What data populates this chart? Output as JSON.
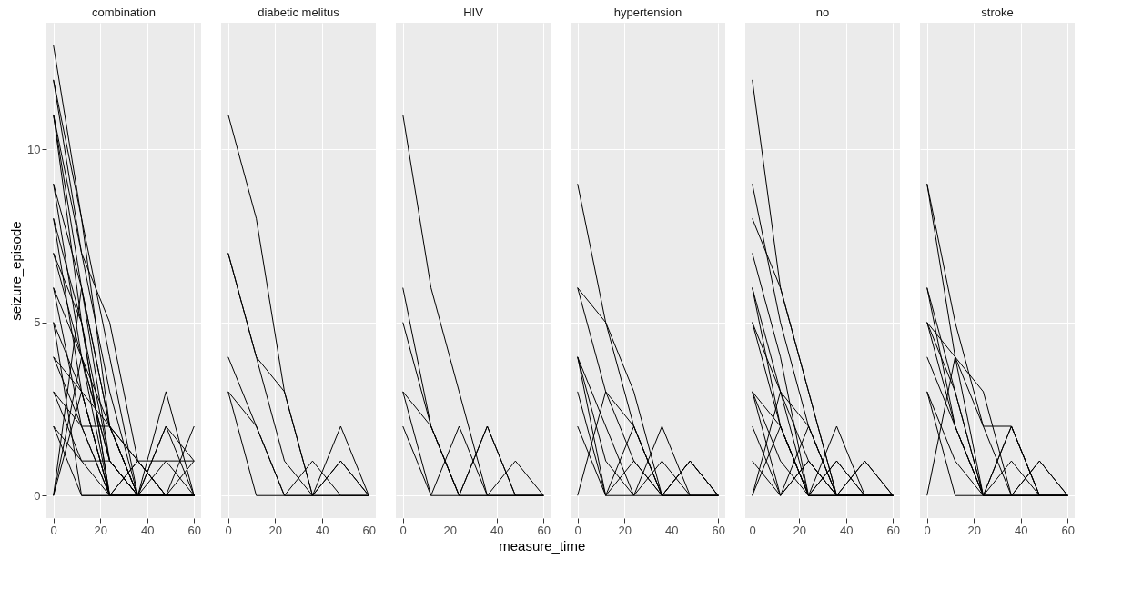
{
  "chart_data": [
    {
      "type": "line",
      "title": "combination",
      "ylabel": "seizure_episode",
      "x": [
        0,
        12,
        24,
        36,
        48,
        60
      ],
      "xlim": [
        -3,
        63
      ],
      "xticks": [
        0,
        20,
        40,
        60
      ],
      "ylim": [
        -0.65,
        13.65
      ],
      "yticks": [
        0,
        5,
        10
      ],
      "grid": true,
      "line_style": "solid",
      "series": [
        {
          "color": "#000000",
          "values": [
            13,
            8,
            4,
            0,
            0,
            0
          ]
        },
        {
          "color": "#000000",
          "values": [
            12,
            7,
            3,
            0,
            3,
            0
          ]
        },
        {
          "color": "#000000",
          "values": [
            12,
            8,
            2,
            0,
            0,
            0
          ]
        },
        {
          "color": "#000000",
          "values": [
            11,
            6,
            2,
            0,
            0,
            0
          ]
        },
        {
          "color": "#000000",
          "values": [
            11,
            7,
            5,
            1,
            0,
            0
          ]
        },
        {
          "color": "#000000",
          "values": [
            11,
            5,
            0,
            0,
            2,
            0
          ]
        },
        {
          "color": "#000000",
          "values": [
            9,
            6,
            2,
            1,
            0,
            0
          ]
        },
        {
          "color": "#000000",
          "values": [
            9,
            4,
            0,
            0,
            0,
            0
          ]
        },
        {
          "color": "#000000",
          "values": [
            8,
            5,
            1,
            0,
            0,
            1
          ]
        },
        {
          "color": "#000000",
          "values": [
            8,
            3,
            0,
            0,
            0,
            0
          ]
        },
        {
          "color": "#000000",
          "values": [
            7,
            4,
            2,
            0,
            0,
            2
          ]
        },
        {
          "color": "#000000",
          "values": [
            7,
            5,
            0,
            0,
            0,
            0
          ]
        },
        {
          "color": "#000000",
          "values": [
            6,
            4,
            1,
            0,
            2,
            1
          ]
        },
        {
          "color": "#000000",
          "values": [
            6,
            2,
            0,
            0,
            0,
            0
          ]
        },
        {
          "color": "#000000",
          "values": [
            5,
            3,
            2,
            1,
            1,
            1
          ]
        },
        {
          "color": "#000000",
          "values": [
            5,
            0,
            0,
            0,
            0,
            0
          ]
        },
        {
          "color": "#000000",
          "values": [
            4,
            2,
            2,
            0,
            0,
            0
          ]
        },
        {
          "color": "#000000",
          "values": [
            4,
            3,
            0,
            1,
            0,
            0
          ]
        },
        {
          "color": "#000000",
          "values": [
            3,
            1,
            1,
            0,
            0,
            0
          ]
        },
        {
          "color": "#000000",
          "values": [
            3,
            2,
            0,
            0,
            0,
            0
          ]
        },
        {
          "color": "#000000",
          "values": [
            2,
            0,
            0,
            1,
            0,
            0
          ]
        },
        {
          "color": "#000000",
          "values": [
            0,
            6,
            1,
            0,
            0,
            0
          ]
        },
        {
          "color": "#000000",
          "values": [
            0,
            4,
            1,
            0,
            0,
            0
          ]
        },
        {
          "color": "#000000",
          "values": [
            0,
            3,
            0,
            0,
            0,
            0
          ]
        },
        {
          "color": "#000000",
          "values": [
            2,
            1,
            0,
            0,
            1,
            0
          ]
        }
      ]
    },
    {
      "type": "line",
      "title": "diabetic melitus",
      "x": [
        0,
        12,
        24,
        36,
        48,
        60
      ],
      "xlim": [
        -3,
        63
      ],
      "xticks": [
        0,
        20,
        40,
        60
      ],
      "ylim": [
        -0.65,
        13.65
      ],
      "yticks": [
        0,
        5,
        10
      ],
      "grid": true,
      "line_style": "solid",
      "tick_labels": "x",
      "series": [
        {
          "color": "#000000",
          "values": [
            11,
            8,
            3,
            0,
            2,
            0
          ]
        },
        {
          "color": "#000000",
          "values": [
            7,
            4,
            3,
            0,
            1,
            0
          ]
        },
        {
          "color": "#000000",
          "values": [
            7,
            4,
            1,
            0,
            0,
            0
          ]
        },
        {
          "color": "#000000",
          "values": [
            4,
            2,
            0,
            1,
            0,
            0
          ]
        },
        {
          "color": "#000000",
          "values": [
            3,
            0,
            0,
            0,
            0,
            0
          ]
        },
        {
          "color": "#000000",
          "values": [
            3,
            2,
            0,
            0,
            1,
            0
          ]
        }
      ]
    },
    {
      "type": "line",
      "title": "HIV",
      "xlabel": "measure_time",
      "x": [
        0,
        12,
        24,
        36,
        48,
        60
      ],
      "xlim": [
        -3,
        63
      ],
      "xticks": [
        0,
        20,
        40,
        60
      ],
      "ylim": [
        -0.65,
        13.65
      ],
      "yticks": [
        0,
        5,
        10
      ],
      "grid": true,
      "line_style": "solid",
      "tick_labels": "x",
      "series": [
        {
          "color": "#000000",
          "values": [
            11,
            6,
            3,
            0,
            0,
            0
          ]
        },
        {
          "color": "#000000",
          "values": [
            6,
            2,
            0,
            2,
            0,
            0
          ]
        },
        {
          "color": "#000000",
          "values": [
            5,
            2,
            0,
            0,
            0,
            0
          ]
        },
        {
          "color": "#000000",
          "values": [
            3,
            2,
            0,
            0,
            1,
            0
          ]
        },
        {
          "color": "#000000",
          "values": [
            3,
            0,
            2,
            0,
            0,
            0
          ]
        },
        {
          "color": "#000000",
          "values": [
            2,
            0,
            0,
            2,
            0,
            0
          ]
        }
      ]
    },
    {
      "type": "line",
      "title": "hypertension",
      "x": [
        0,
        12,
        24,
        36,
        48,
        60
      ],
      "xlim": [
        -3,
        63
      ],
      "xticks": [
        0,
        20,
        40,
        60
      ],
      "ylim": [
        -0.65,
        13.65
      ],
      "yticks": [
        0,
        5,
        10
      ],
      "grid": true,
      "line_style": "solid",
      "tick_labels": "x",
      "series": [
        {
          "color": "#000000",
          "values": [
            9,
            5,
            3,
            0,
            0,
            0
          ]
        },
        {
          "color": "#000000",
          "values": [
            6,
            5,
            2,
            0,
            1,
            0
          ]
        },
        {
          "color": "#000000",
          "values": [
            6,
            3,
            1,
            0,
            0,
            0
          ]
        },
        {
          "color": "#000000",
          "values": [
            4,
            1,
            0,
            2,
            0,
            0
          ]
        },
        {
          "color": "#000000",
          "values": [
            4,
            2,
            0,
            0,
            1,
            0
          ]
        },
        {
          "color": "#000000",
          "values": [
            4,
            0,
            0,
            1,
            0,
            0
          ]
        },
        {
          "color": "#000000",
          "values": [
            3,
            0,
            2,
            0,
            0,
            0
          ]
        },
        {
          "color": "#000000",
          "values": [
            2,
            0,
            1,
            0,
            1,
            0
          ]
        },
        {
          "color": "#000000",
          "values": [
            0,
            3,
            2,
            0,
            0,
            0
          ]
        }
      ]
    },
    {
      "type": "line",
      "title": "no",
      "x": [
        0,
        12,
        24,
        36,
        48,
        60
      ],
      "xlim": [
        -3,
        63
      ],
      "xticks": [
        0,
        20,
        40,
        60
      ],
      "ylim": [
        -0.65,
        13.65
      ],
      "yticks": [
        0,
        5,
        10
      ],
      "grid": true,
      "line_style": "solid",
      "tick_labels": "x",
      "series": [
        {
          "color": "#000000",
          "values": [
            12,
            6,
            3,
            0,
            0,
            0
          ]
        },
        {
          "color": "#000000",
          "values": [
            9,
            5,
            2,
            0,
            0,
            0
          ]
        },
        {
          "color": "#000000",
          "values": [
            8,
            6,
            3,
            0,
            0,
            0
          ]
        },
        {
          "color": "#000000",
          "values": [
            7,
            4,
            0,
            0,
            0,
            0
          ]
        },
        {
          "color": "#000000",
          "values": [
            6,
            3,
            0,
            2,
            0,
            0
          ]
        },
        {
          "color": "#000000",
          "values": [
            6,
            2,
            0,
            0,
            1,
            0
          ]
        },
        {
          "color": "#000000",
          "values": [
            5,
            2,
            0,
            1,
            0,
            0
          ]
        },
        {
          "color": "#000000",
          "values": [
            5,
            3,
            1,
            0,
            0,
            0
          ]
        },
        {
          "color": "#000000",
          "values": [
            3,
            2,
            0,
            0,
            0,
            0
          ]
        },
        {
          "color": "#000000",
          "values": [
            3,
            0,
            2,
            0,
            0,
            0
          ]
        },
        {
          "color": "#000000",
          "values": [
            3,
            1,
            0,
            0,
            1,
            0
          ]
        },
        {
          "color": "#000000",
          "values": [
            2,
            0,
            1,
            0,
            0,
            0
          ]
        },
        {
          "color": "#000000",
          "values": [
            1,
            0,
            1,
            0,
            0,
            0
          ]
        },
        {
          "color": "#000000",
          "values": [
            0,
            3,
            2,
            0,
            0,
            0
          ]
        },
        {
          "color": "#000000",
          "values": [
            0,
            2,
            0,
            1,
            0,
            0
          ]
        }
      ]
    },
    {
      "type": "line",
      "title": "stroke",
      "x": [
        0,
        12,
        24,
        36,
        48,
        60
      ],
      "xlim": [
        -3,
        63
      ],
      "xticks": [
        0,
        20,
        40,
        60
      ],
      "ylim": [
        -0.65,
        13.65
      ],
      "yticks": [
        0,
        5,
        10
      ],
      "grid": true,
      "line_style": "solid",
      "tick_labels": "x",
      "series": [
        {
          "color": "#000000",
          "values": [
            9,
            5,
            2,
            0,
            0,
            0
          ]
        },
        {
          "color": "#000000",
          "values": [
            9,
            4,
            0,
            0,
            1,
            0
          ]
        },
        {
          "color": "#000000",
          "values": [
            6,
            2,
            0,
            2,
            0,
            0
          ]
        },
        {
          "color": "#000000",
          "values": [
            6,
            3,
            0,
            0,
            0,
            0
          ]
        },
        {
          "color": "#000000",
          "values": [
            5,
            4,
            3,
            0,
            0,
            0
          ]
        },
        {
          "color": "#000000",
          "values": [
            5,
            3,
            0,
            1,
            0,
            0
          ]
        },
        {
          "color": "#000000",
          "values": [
            5,
            2,
            0,
            2,
            0,
            0
          ]
        },
        {
          "color": "#000000",
          "values": [
            4,
            2,
            0,
            0,
            1,
            0
          ]
        },
        {
          "color": "#000000",
          "values": [
            3,
            1,
            0,
            0,
            0,
            0
          ]
        },
        {
          "color": "#000000",
          "values": [
            3,
            0,
            0,
            0,
            0,
            0
          ]
        },
        {
          "color": "#000000",
          "values": [
            0,
            4,
            2,
            2,
            0,
            0
          ]
        }
      ]
    }
  ]
}
